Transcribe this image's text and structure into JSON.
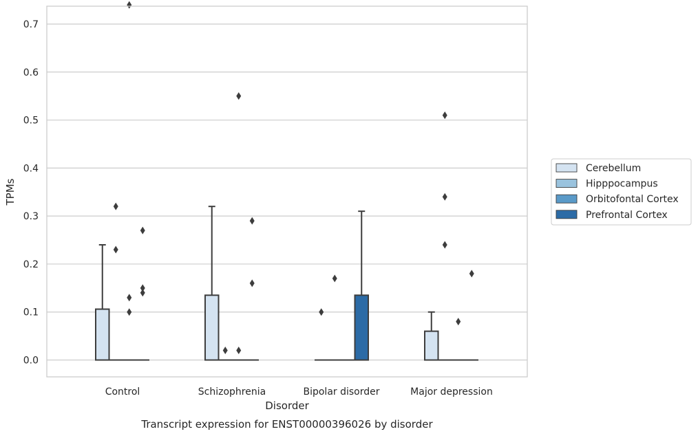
{
  "chart_data": {
    "type": "box",
    "title": "",
    "caption": "Transcript expression for ENST00000396026 by disorder",
    "xlabel": "Disorder",
    "ylabel": "TPMs",
    "ylim": [
      -0.036,
      0.78
    ],
    "yticks": [
      0.0,
      0.1,
      0.2,
      0.3,
      0.4,
      0.5,
      0.6,
      0.7
    ],
    "yticklabels": [
      "0.0",
      "0.1",
      "0.2",
      "0.3",
      "0.4",
      "0.5",
      "0.6",
      "0.7"
    ],
    "grid": true,
    "legend_position": "right",
    "categories": [
      "Control",
      "Schizophrenia",
      "Bipolar disorder",
      "Major depression"
    ],
    "series": [
      {
        "name": "Cerebellum",
        "color": "#d4e3f1",
        "boxes": [
          {
            "q1": 0.0,
            "median": 0.0,
            "q3": 0.106,
            "whisker_low": 0.0,
            "whisker_high": 0.24,
            "outliers": []
          },
          {
            "q1": 0.0,
            "median": 0.0,
            "q3": 0.135,
            "whisker_low": 0.0,
            "whisker_high": 0.32,
            "outliers": []
          },
          {
            "q1": 0.0,
            "median": 0.0,
            "q3": 0.0,
            "whisker_low": 0.0,
            "whisker_high": 0.0,
            "outliers": [
              0.1
            ]
          },
          {
            "q1": 0.0,
            "median": 0.0,
            "q3": 0.06,
            "whisker_low": 0.0,
            "whisker_high": 0.1,
            "outliers": []
          }
        ]
      },
      {
        "name": "Hipppocampus",
        "color": "#9ac3de",
        "boxes": [
          {
            "q1": 0.0,
            "median": 0.0,
            "q3": 0.0,
            "whisker_low": 0.0,
            "whisker_high": 0.0,
            "outliers": [
              0.32,
              0.23
            ]
          },
          {
            "q1": 0.0,
            "median": 0.0,
            "q3": 0.0,
            "whisker_low": 0.0,
            "whisker_high": 0.0,
            "outliers": [
              0.02
            ]
          },
          {
            "q1": 0.0,
            "median": 0.0,
            "q3": 0.0,
            "whisker_low": 0.0,
            "whisker_high": 0.0,
            "outliers": [
              0.17
            ]
          },
          {
            "q1": 0.0,
            "median": 0.0,
            "q3": 0.0,
            "whisker_low": 0.0,
            "whisker_high": 0.0,
            "outliers": [
              0.51,
              0.34,
              0.24
            ]
          }
        ]
      },
      {
        "name": "Orbitofontal Cortex",
        "color": "#5a9ac8",
        "boxes": [
          {
            "q1": 0.0,
            "median": 0.0,
            "q3": 0.0,
            "whisker_low": 0.0,
            "whisker_high": 0.0,
            "outliers": [
              0.74,
              0.13,
              0.1
            ]
          },
          {
            "q1": 0.0,
            "median": 0.0,
            "q3": 0.0,
            "whisker_low": 0.0,
            "whisker_high": 0.0,
            "outliers": [
              0.55,
              0.02
            ]
          },
          {
            "q1": 0.0,
            "median": 0.0,
            "q3": 0.0,
            "whisker_low": 0.0,
            "whisker_high": 0.0,
            "outliers": []
          },
          {
            "q1": 0.0,
            "median": 0.0,
            "q3": 0.0,
            "whisker_low": 0.0,
            "whisker_high": 0.0,
            "outliers": [
              0.08
            ]
          }
        ]
      },
      {
        "name": "Prefrontal Cortex",
        "color": "#2c6ba6",
        "boxes": [
          {
            "q1": 0.0,
            "median": 0.0,
            "q3": 0.0,
            "whisker_low": 0.0,
            "whisker_high": 0.0,
            "outliers": [
              0.27,
              0.15,
              0.14
            ]
          },
          {
            "q1": 0.0,
            "median": 0.0,
            "q3": 0.0,
            "whisker_low": 0.0,
            "whisker_high": 0.0,
            "outliers": [
              0.29,
              0.16
            ]
          },
          {
            "q1": 0.0,
            "median": 0.0,
            "q3": 0.135,
            "whisker_low": 0.0,
            "whisker_high": 0.31,
            "outliers": []
          },
          {
            "q1": 0.0,
            "median": 0.0,
            "q3": 0.0,
            "whisker_low": 0.0,
            "whisker_high": 0.0,
            "outliers": [
              0.18
            ]
          }
        ]
      }
    ]
  }
}
